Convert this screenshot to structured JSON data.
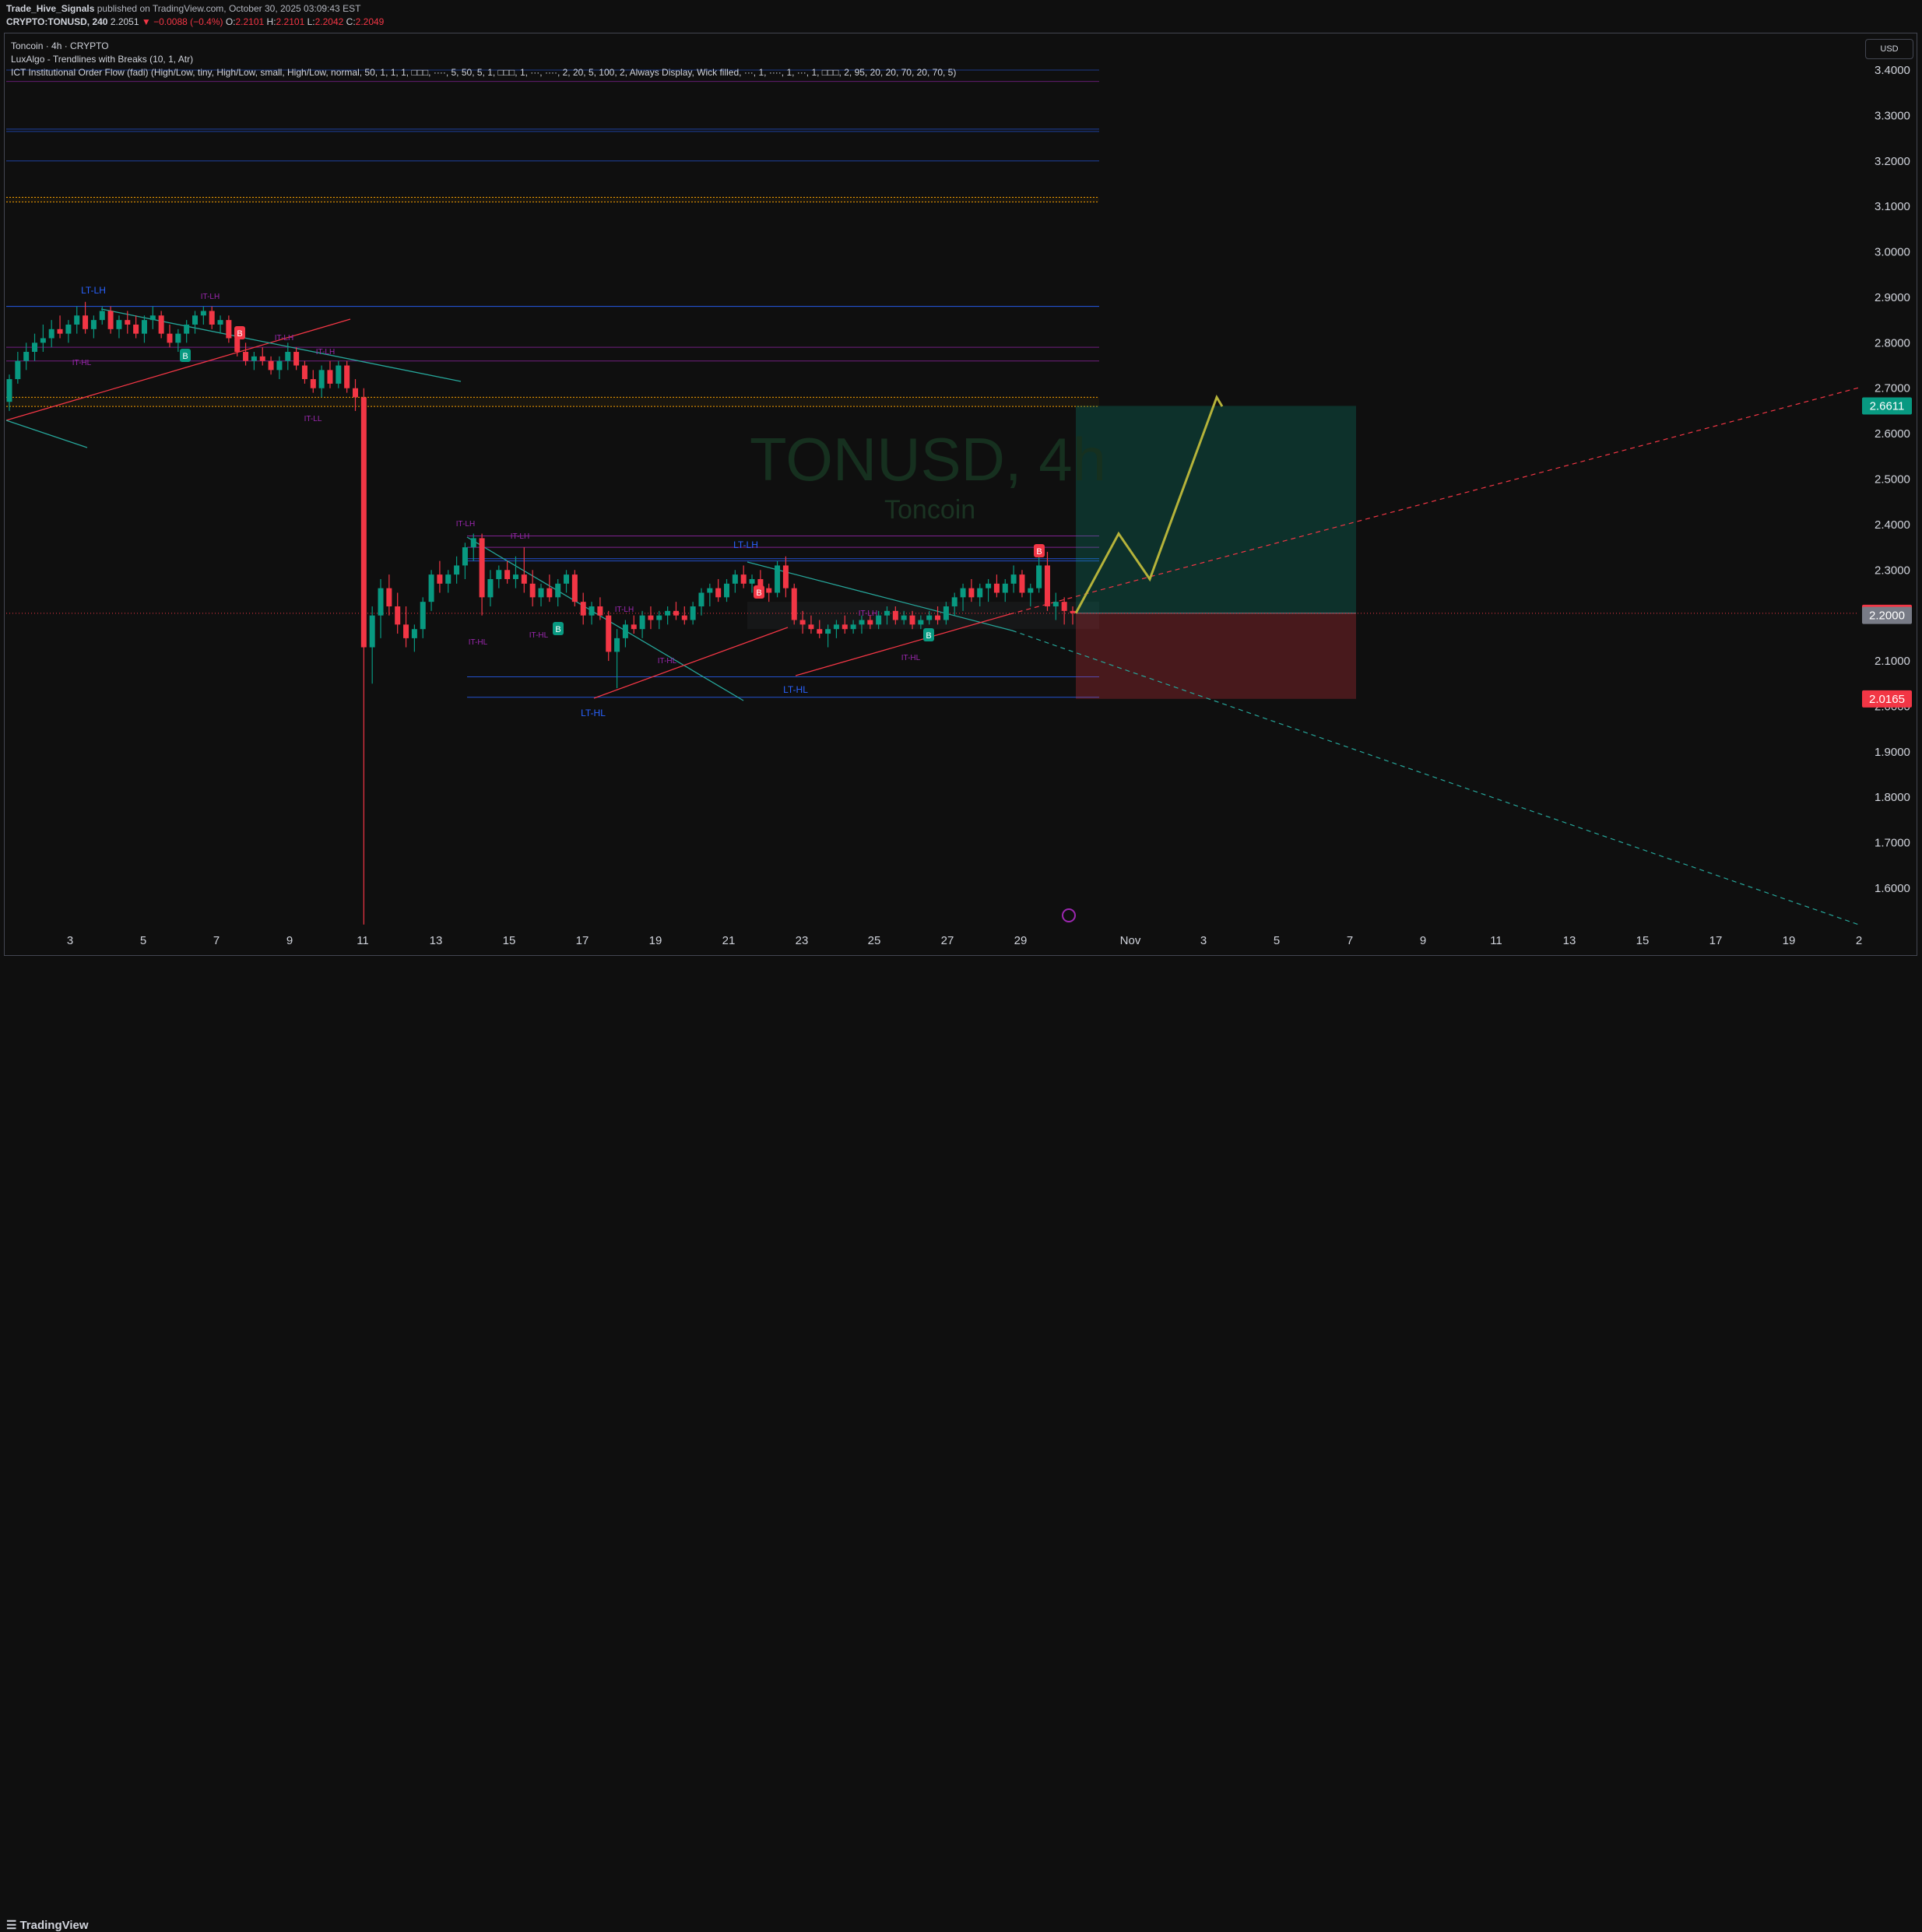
{
  "header": {
    "author": "Trade_Hive_Signals",
    "published_text": "published on TradingView.com, October 30, 2025 03:09:43 EST",
    "symbol": "CRYPTO:TONUSD, 240",
    "last": "2.2051",
    "change": "▼ −0.0088 (−0.4%)",
    "open_label": "O:",
    "open": "2.2101",
    "high_label": "H:",
    "high": "2.2101",
    "low_label": "L:",
    "low": "2.2042",
    "close_label": "C:",
    "close": "2.2049"
  },
  "legend": {
    "title": "Toncoin · 4h · CRYPTO",
    "indicator1": "LuxAlgo - Trendlines with Breaks (10, 1, Atr)",
    "indicator2": "ICT Institutional Order Flow (fadi) (High/Low, tiny, High/Low, small, High/Low, normal, 50, 1, 1, 1, □□□, ····, 5, 50, 5, 1, □□□, 1, ···, ····, 2, 20, 5, 100, 2, Always Display, Wick filled, ···, 1, ····, 1, ···, 1, □□□, 2, 95, 20, 20, 70, 20, 70, 5)"
  },
  "watermark": {
    "symbol": "TONUSD, 4h",
    "name": "Toncoin"
  },
  "currency_button": "USD",
  "footer": {
    "brand": "TradingView"
  },
  "colors": {
    "up": "#089981",
    "down": "#f23645",
    "target": "#089981",
    "stop": "#f23645",
    "projection": "#b5b33a",
    "structure": "#2962ff",
    "internal": "#9c27b0",
    "orange": "#f59f00"
  },
  "chart_data": {
    "type": "candlestick",
    "x_tick_labels": [
      "3",
      "5",
      "7",
      "9",
      "11",
      "13",
      "15",
      "17",
      "19",
      "21",
      "23",
      "25",
      "27",
      "29",
      "Nov",
      "3",
      "5",
      "7",
      "9",
      "11",
      "13",
      "15",
      "17",
      "19",
      "2"
    ],
    "y_tick_labels": [
      "3.4000",
      "3.3000",
      "3.2000",
      "3.1000",
      "3.0000",
      "2.9000",
      "2.8000",
      "2.7000",
      "2.6000",
      "2.5000",
      "2.4000",
      "2.3000",
      "2.2000",
      "2.1000",
      "2.0000",
      "1.9000",
      "1.8000",
      "1.7000",
      "1.6000"
    ],
    "ylim": [
      1.55,
      3.45
    ],
    "price_labels": [
      {
        "text": "2.6611",
        "value": 2.6611,
        "color": "#089981"
      },
      {
        "text": "2.2049",
        "value": 2.2049,
        "color": "#f23645"
      },
      {
        "text": "2.2000",
        "value": 2.2,
        "color": "#787b86"
      },
      {
        "text": "2.0165",
        "value": 2.0165,
        "color": "#f23645"
      }
    ],
    "position": {
      "entry": 2.205,
      "target": 2.6611,
      "stop": 2.0165
    },
    "projection_path": [
      2.205,
      2.38,
      2.28,
      2.68,
      2.66
    ],
    "candles": [
      [
        2.67,
        2.73,
        2.65,
        2.72
      ],
      [
        2.72,
        2.78,
        2.71,
        2.76
      ],
      [
        2.76,
        2.8,
        2.74,
        2.78
      ],
      [
        2.78,
        2.82,
        2.76,
        2.8
      ],
      [
        2.8,
        2.84,
        2.78,
        2.81
      ],
      [
        2.81,
        2.85,
        2.79,
        2.83
      ],
      [
        2.83,
        2.86,
        2.81,
        2.82
      ],
      [
        2.82,
        2.85,
        2.8,
        2.84
      ],
      [
        2.84,
        2.88,
        2.82,
        2.86
      ],
      [
        2.86,
        2.89,
        2.82,
        2.83
      ],
      [
        2.83,
        2.86,
        2.81,
        2.85
      ],
      [
        2.85,
        2.88,
        2.84,
        2.87
      ],
      [
        2.87,
        2.88,
        2.82,
        2.83
      ],
      [
        2.83,
        2.86,
        2.81,
        2.85
      ],
      [
        2.85,
        2.87,
        2.82,
        2.84
      ],
      [
        2.84,
        2.86,
        2.81,
        2.82
      ],
      [
        2.82,
        2.86,
        2.8,
        2.85
      ],
      [
        2.85,
        2.88,
        2.83,
        2.86
      ],
      [
        2.86,
        2.87,
        2.81,
        2.82
      ],
      [
        2.82,
        2.84,
        2.79,
        2.8
      ],
      [
        2.8,
        2.83,
        2.78,
        2.82
      ],
      [
        2.82,
        2.85,
        2.8,
        2.84
      ],
      [
        2.84,
        2.87,
        2.82,
        2.86
      ],
      [
        2.86,
        2.88,
        2.84,
        2.87
      ],
      [
        2.87,
        2.88,
        2.83,
        2.84
      ],
      [
        2.84,
        2.86,
        2.82,
        2.85
      ],
      [
        2.85,
        2.86,
        2.8,
        2.81
      ],
      [
        2.81,
        2.82,
        2.77,
        2.78
      ],
      [
        2.78,
        2.8,
        2.75,
        2.76
      ],
      [
        2.76,
        2.78,
        2.74,
        2.77
      ],
      [
        2.77,
        2.79,
        2.75,
        2.76
      ],
      [
        2.76,
        2.77,
        2.73,
        2.74
      ],
      [
        2.74,
        2.77,
        2.72,
        2.76
      ],
      [
        2.76,
        2.8,
        2.74,
        2.78
      ],
      [
        2.78,
        2.79,
        2.74,
        2.75
      ],
      [
        2.75,
        2.76,
        2.71,
        2.72
      ],
      [
        2.72,
        2.74,
        2.69,
        2.7
      ],
      [
        2.7,
        2.75,
        2.68,
        2.74
      ],
      [
        2.74,
        2.76,
        2.7,
        2.71
      ],
      [
        2.71,
        2.76,
        2.7,
        2.75
      ],
      [
        2.75,
        2.76,
        2.69,
        2.7
      ],
      [
        2.7,
        2.72,
        2.65,
        2.68
      ],
      [
        2.68,
        2.7,
        1.52,
        2.13
      ],
      [
        2.13,
        2.22,
        2.05,
        2.2
      ],
      [
        2.2,
        2.28,
        2.15,
        2.26
      ],
      [
        2.26,
        2.29,
        2.2,
        2.22
      ],
      [
        2.22,
        2.25,
        2.16,
        2.18
      ],
      [
        2.18,
        2.22,
        2.13,
        2.15
      ],
      [
        2.15,
        2.18,
        2.12,
        2.17
      ],
      [
        2.17,
        2.24,
        2.15,
        2.23
      ],
      [
        2.23,
        2.3,
        2.21,
        2.29
      ],
      [
        2.29,
        2.32,
        2.25,
        2.27
      ],
      [
        2.27,
        2.3,
        2.25,
        2.29
      ],
      [
        2.29,
        2.33,
        2.27,
        2.31
      ],
      [
        2.31,
        2.36,
        2.28,
        2.35
      ],
      [
        2.35,
        2.38,
        2.32,
        2.37
      ],
      [
        2.37,
        2.38,
        2.2,
        2.24
      ],
      [
        2.24,
        2.3,
        2.22,
        2.28
      ],
      [
        2.28,
        2.31,
        2.26,
        2.3
      ],
      [
        2.3,
        2.32,
        2.27,
        2.28
      ],
      [
        2.28,
        2.33,
        2.26,
        2.29
      ],
      [
        2.29,
        2.35,
        2.25,
        2.27
      ],
      [
        2.27,
        2.3,
        2.22,
        2.24
      ],
      [
        2.24,
        2.27,
        2.22,
        2.26
      ],
      [
        2.26,
        2.29,
        2.23,
        2.24
      ],
      [
        2.24,
        2.28,
        2.22,
        2.27
      ],
      [
        2.27,
        2.3,
        2.25,
        2.29
      ],
      [
        2.29,
        2.3,
        2.22,
        2.23
      ],
      [
        2.23,
        2.25,
        2.18,
        2.2
      ],
      [
        2.2,
        2.23,
        2.18,
        2.22
      ],
      [
        2.22,
        2.24,
        2.19,
        2.2
      ],
      [
        2.2,
        2.21,
        2.1,
        2.12
      ],
      [
        2.12,
        2.17,
        2.04,
        2.15
      ],
      [
        2.15,
        2.19,
        2.13,
        2.18
      ],
      [
        2.18,
        2.2,
        2.16,
        2.17
      ],
      [
        2.17,
        2.21,
        2.15,
        2.2
      ],
      [
        2.2,
        2.22,
        2.17,
        2.19
      ],
      [
        2.19,
        2.21,
        2.17,
        2.2
      ],
      [
        2.2,
        2.22,
        2.18,
        2.21
      ],
      [
        2.21,
        2.23,
        2.19,
        2.2
      ],
      [
        2.2,
        2.22,
        2.18,
        2.19
      ],
      [
        2.19,
        2.23,
        2.18,
        2.22
      ],
      [
        2.22,
        2.26,
        2.2,
        2.25
      ],
      [
        2.25,
        2.27,
        2.22,
        2.26
      ],
      [
        2.26,
        2.28,
        2.23,
        2.24
      ],
      [
        2.24,
        2.28,
        2.23,
        2.27
      ],
      [
        2.27,
        2.3,
        2.25,
        2.29
      ],
      [
        2.29,
        2.31,
        2.26,
        2.27
      ],
      [
        2.27,
        2.29,
        2.25,
        2.28
      ],
      [
        2.28,
        2.3,
        2.25,
        2.26
      ],
      [
        2.26,
        2.27,
        2.23,
        2.25
      ],
      [
        2.25,
        2.32,
        2.24,
        2.31
      ],
      [
        2.31,
        2.33,
        2.24,
        2.26
      ],
      [
        2.26,
        2.27,
        2.18,
        2.19
      ],
      [
        2.19,
        2.21,
        2.16,
        2.18
      ],
      [
        2.18,
        2.2,
        2.16,
        2.17
      ],
      [
        2.17,
        2.19,
        2.15,
        2.16
      ],
      [
        2.16,
        2.18,
        2.13,
        2.17
      ],
      [
        2.17,
        2.19,
        2.15,
        2.18
      ],
      [
        2.18,
        2.2,
        2.16,
        2.17
      ],
      [
        2.17,
        2.19,
        2.16,
        2.18
      ],
      [
        2.18,
        2.2,
        2.16,
        2.19
      ],
      [
        2.19,
        2.2,
        2.17,
        2.18
      ],
      [
        2.18,
        2.21,
        2.17,
        2.2
      ],
      [
        2.2,
        2.22,
        2.18,
        2.21
      ],
      [
        2.21,
        2.22,
        2.18,
        2.19
      ],
      [
        2.19,
        2.21,
        2.18,
        2.2
      ],
      [
        2.2,
        2.21,
        2.17,
        2.18
      ],
      [
        2.18,
        2.2,
        2.17,
        2.19
      ],
      [
        2.19,
        2.21,
        2.18,
        2.2
      ],
      [
        2.2,
        2.22,
        2.18,
        2.19
      ],
      [
        2.19,
        2.23,
        2.18,
        2.22
      ],
      [
        2.22,
        2.25,
        2.2,
        2.24
      ],
      [
        2.24,
        2.27,
        2.21,
        2.26
      ],
      [
        2.26,
        2.28,
        2.23,
        2.24
      ],
      [
        2.24,
        2.27,
        2.22,
        2.26
      ],
      [
        2.26,
        2.28,
        2.23,
        2.27
      ],
      [
        2.27,
        2.29,
        2.24,
        2.25
      ],
      [
        2.25,
        2.28,
        2.23,
        2.27
      ],
      [
        2.27,
        2.31,
        2.25,
        2.29
      ],
      [
        2.29,
        2.3,
        2.24,
        2.25
      ],
      [
        2.25,
        2.27,
        2.22,
        2.26
      ],
      [
        2.26,
        2.33,
        2.25,
        2.31
      ],
      [
        2.31,
        2.34,
        2.21,
        2.22
      ],
      [
        2.22,
        2.25,
        2.19,
        2.23
      ],
      [
        2.23,
        2.24,
        2.18,
        2.21
      ],
      [
        2.21,
        2.22,
        2.18,
        2.205
      ]
    ]
  }
}
